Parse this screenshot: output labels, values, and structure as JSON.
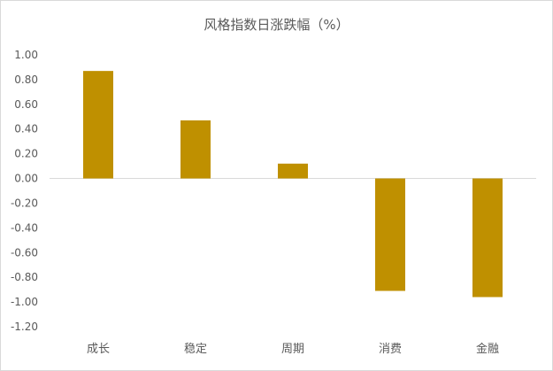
{
  "chart_data": {
    "type": "bar",
    "title": "风格指数日涨跌幅（%）",
    "xlabel": "",
    "ylabel": "",
    "categories": [
      "成长",
      "稳定",
      "周期",
      "消费",
      "金融"
    ],
    "values": [
      0.87,
      0.47,
      0.12,
      -0.91,
      -0.96
    ],
    "ylim": [
      -1.2,
      1.0
    ],
    "yticks": [
      "1.00",
      "0.80",
      "0.60",
      "0.40",
      "0.20",
      "0.00",
      "-0.20",
      "-0.40",
      "-0.60",
      "-0.80",
      "-1.00",
      "-1.20"
    ],
    "bar_color": "#bf9000",
    "grid": false,
    "legend": "none"
  }
}
